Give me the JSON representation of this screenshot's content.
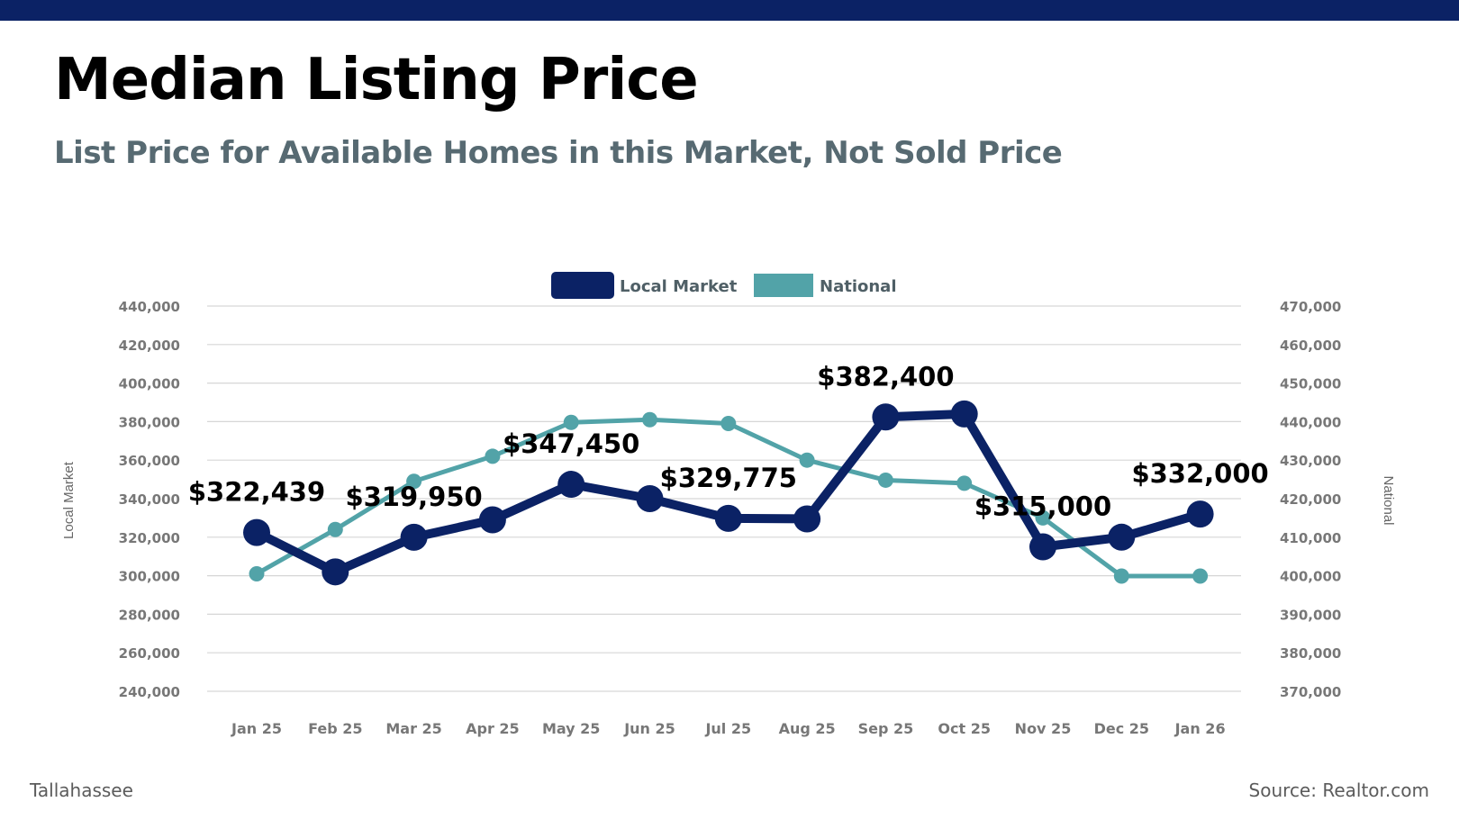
{
  "header": {
    "title": "Median Listing Price",
    "subtitle": "List Price for Available Homes in this Market, Not Sold Price"
  },
  "footer": {
    "location": "Tallahassee",
    "source": "Source: Realtor.com"
  },
  "colors": {
    "top_bar": "#0b2265",
    "local": "#0b2265",
    "national": "#52a3a8"
  },
  "chart_data": {
    "type": "line",
    "categories": [
      "Jan 25",
      "Feb 25",
      "Mar 25",
      "Apr 25",
      "May 25",
      "Jun 25",
      "Jul 25",
      "Aug 25",
      "Sep 25",
      "Oct 25",
      "Nov 25",
      "Dec 25",
      "Jan 26"
    ],
    "series": [
      {
        "name": "Local Market",
        "axis": "left",
        "values": [
          322439,
          302000,
          319950,
          329000,
          347450,
          340000,
          329775,
          329500,
          382400,
          384000,
          315000,
          320000,
          332000
        ],
        "data_labels": [
          "$322,439",
          "",
          "$319,950",
          "",
          "$347,450",
          "",
          "$329,775",
          "",
          "$382,400",
          "",
          "$315,000",
          "",
          "$332,000"
        ]
      },
      {
        "name": "National",
        "axis": "right",
        "values": [
          400500,
          412000,
          424500,
          431000,
          439800,
          440500,
          439500,
          430000,
          424800,
          424000,
          415000,
          399900,
          399900
        ]
      }
    ],
    "y_left": {
      "label": "Local Market",
      "ylim": [
        240000,
        440000
      ],
      "ticks": [
        "440,000",
        "420,000",
        "400,000",
        "380,000",
        "360,000",
        "340,000",
        "320,000",
        "300,000",
        "280,000",
        "260,000",
        "240,000"
      ]
    },
    "y_right": {
      "label": "National",
      "ylim": [
        370000,
        470000
      ],
      "ticks": [
        "470,000",
        "460,000",
        "450,000",
        "440,000",
        "430,000",
        "420,000",
        "410,000",
        "400,000",
        "390,000",
        "380,000",
        "370,000"
      ]
    },
    "grid": true,
    "legend_position": "top-center"
  }
}
